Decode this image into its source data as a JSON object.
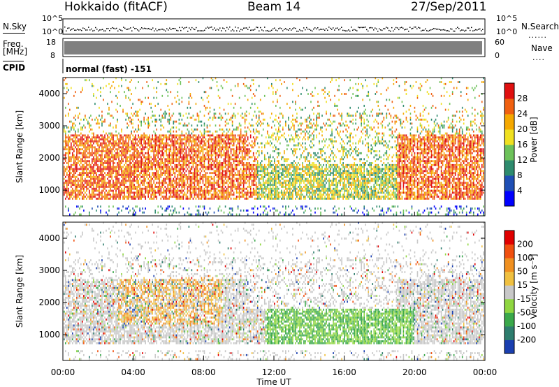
{
  "header": {
    "station": "Hokkaido (fitACF)",
    "beam": "Beam 14",
    "date": "27/Sep/2011"
  },
  "noise_panel": {
    "left_label": "N.Sky",
    "right_label": "N.Search",
    "tick_top": "10^5",
    "tick_bottom": "10^0"
  },
  "freq_panel": {
    "left_label": "Freq.",
    "unit": "[MHz]",
    "left_ticks": [
      "18",
      "8"
    ],
    "right_label": "Nave",
    "right_ticks": [
      "60",
      "0"
    ],
    "cpid_label": "CPID",
    "cpid_text": "normal (fast) -151"
  },
  "chart_data": [
    {
      "type": "heatmap",
      "name": "power",
      "ylabel": "Slant Range [km]",
      "yticks": [
        "1000",
        "2000",
        "3000",
        "4000"
      ],
      "ylim": [
        200,
        4500
      ],
      "xlabel": "Time UT",
      "xticks": [
        "00:00",
        "04:00",
        "08:00",
        "12:00",
        "16:00",
        "20:00",
        "00:00"
      ],
      "colorbar": {
        "label": "Power [dB]",
        "ticks": [
          "4",
          "8",
          "12",
          "16",
          "20",
          "24",
          "28"
        ],
        "colors": [
          "#0000ff",
          "#1f4fb5",
          "#2e8b6e",
          "#6dc25a",
          "#f0e020",
          "#f5a800",
          "#f06010",
          "#e01010"
        ]
      }
    },
    {
      "type": "heatmap",
      "name": "velocity",
      "ylabel": "Slant Range [km]",
      "yticks": [
        "1000",
        "2000",
        "3000",
        "4000"
      ],
      "ylim": [
        200,
        4500
      ],
      "xlabel": "Time UT",
      "xticks": [
        "00:00",
        "04:00",
        "08:00",
        "12:00",
        "16:00",
        "20:00",
        "00:00"
      ],
      "colorbar": {
        "label": "Velocity [m s⁻¹]",
        "ticks": [
          "200",
          "100",
          "50",
          "15",
          "-15",
          "-50",
          "-100",
          "-200"
        ],
        "colors": [
          "#1a3fb0",
          "#2e7d6e",
          "#3aa84a",
          "#8fd640",
          "#c8c8c8",
          "#f0c040",
          "#f09020",
          "#f05010",
          "#e00000"
        ]
      }
    }
  ]
}
